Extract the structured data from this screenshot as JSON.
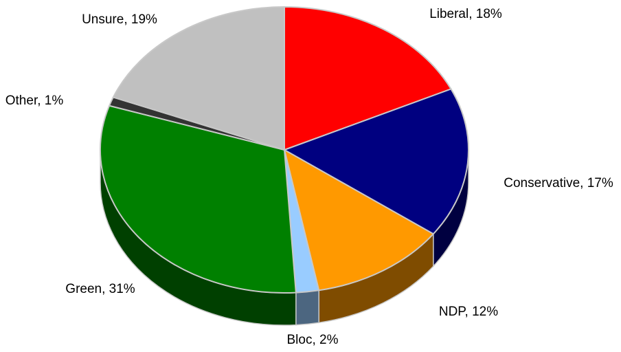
{
  "chart_data": {
    "type": "pie",
    "style": "3d",
    "title": "",
    "start_angle": "top, clockwise",
    "slices": [
      {
        "label": "Liberal, 18%",
        "name": "Liberal",
        "value": 18,
        "color": "#ff0000",
        "side_color": "#800000"
      },
      {
        "label": "Conservative, 17%",
        "name": "Conservative",
        "value": 17,
        "color": "#000080",
        "side_color": "#000040"
      },
      {
        "label": "NDP, 12%",
        "name": "NDP",
        "value": 12,
        "color": "#ff9900",
        "side_color": "#7f4c00"
      },
      {
        "label": "Bloc, 2%",
        "name": "Bloc",
        "value": 2,
        "color": "#99ccff",
        "side_color": "#4c6680"
      },
      {
        "label": "Green, 31%",
        "name": "Green",
        "value": 31,
        "color": "#008000",
        "side_color": "#004000"
      },
      {
        "label": "Other, 1%",
        "name": "Other",
        "value": 1,
        "color": "#333333",
        "side_color": "#1a1a1a"
      },
      {
        "label": "Unsure, 19%",
        "name": "Unsure",
        "value": 19,
        "color": "#c0c0c0",
        "side_color": "#606060"
      }
    ]
  }
}
